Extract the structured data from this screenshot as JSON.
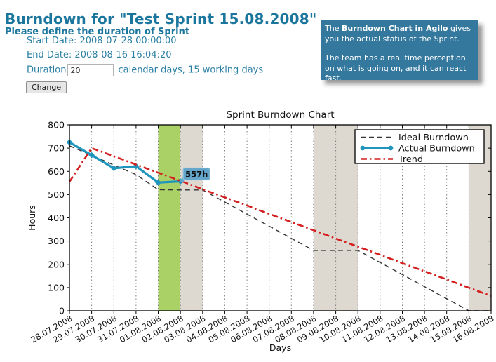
{
  "page": {
    "title": "Burndown for \"Test Sprint 15.08.2008\"",
    "subtitle": "Please define the duration of Sprint",
    "start_date": "Start Date: 2008-07-28 00:00:00",
    "end_date": "End Date: 2008-08-16 16:04:20",
    "duration_label": "Duration",
    "duration_value": "20",
    "duration_suffix": "calendar days, 15 working days",
    "change_button": "Change"
  },
  "info_box": {
    "bg_color": "#35789e",
    "p1_prefix": "The ",
    "p1_bold": "Burndown Chart in Agilo",
    "p1_rest": " gives you the actual status of the Sprint.",
    "p2": "The team has a real time perception on what is going on, and it can react fast."
  },
  "chart_data": {
    "type": "line",
    "title": "Sprint Burndown Chart",
    "xlabel": "Days",
    "ylabel": "Hours",
    "ylim": [
      0,
      800
    ],
    "yticks": [
      0,
      100,
      200,
      300,
      400,
      500,
      600,
      700,
      800
    ],
    "grid": "vertical-dotted",
    "legend_position": "upper right",
    "categories": [
      "28.07.2008",
      "29.07.2008",
      "30.07.2008",
      "31.07.2008",
      "01.08.2008",
      "02.08.2008",
      "03.08.2008",
      "04.08.2008",
      "05.08.2008",
      "06.08.2008",
      "07.08.2008",
      "08.08.2008",
      "09.08.2008",
      "10.08.2008",
      "11.08.2008",
      "12.08.2008",
      "13.08.2008",
      "14.08.2008",
      "15.08.2008",
      "16.08.2008"
    ],
    "series": [
      {
        "name": "Ideal Burndown",
        "dash": "dashed",
        "color": "#333333",
        "width": 1.4,
        "markers": false,
        "values": [
          710,
          669,
          627,
          586,
          521,
          520,
          520,
          468,
          416,
          364,
          312,
          260,
          260,
          260,
          208,
          156,
          104,
          52,
          0,
          0
        ]
      },
      {
        "name": "Actual Burndown",
        "dash": "solid",
        "color": "#1f95bd",
        "width": 3.2,
        "markers": true,
        "values": [
          725,
          670,
          613,
          622,
          552,
          557
        ]
      },
      {
        "name": "Trend",
        "dash": "dashdot",
        "color": "#d42020",
        "width": 2.6,
        "markers": false,
        "values": [
          555,
          700,
          665,
          629,
          594,
          559,
          523,
          488,
          453,
          417,
          382,
          347,
          311,
          276,
          241,
          205,
          170,
          135,
          99,
          64
        ]
      }
    ],
    "bands": [
      {
        "name": "today",
        "from": 4,
        "to": 5,
        "color": "#a9d166"
      },
      {
        "name": "weekend",
        "from": 5,
        "to": 6,
        "color": "#ddd9d1"
      },
      {
        "name": "weekend",
        "from": 11,
        "to": 13,
        "color": "#ddd9d1"
      },
      {
        "name": "weekend",
        "from": 18,
        "to": 19,
        "color": "#ddd9d1"
      }
    ],
    "annotation": {
      "text": "557h",
      "day": 5,
      "value": 557,
      "bg": "#63a4cb",
      "border": "#90c0da",
      "text_color": "#ffffff"
    }
  }
}
